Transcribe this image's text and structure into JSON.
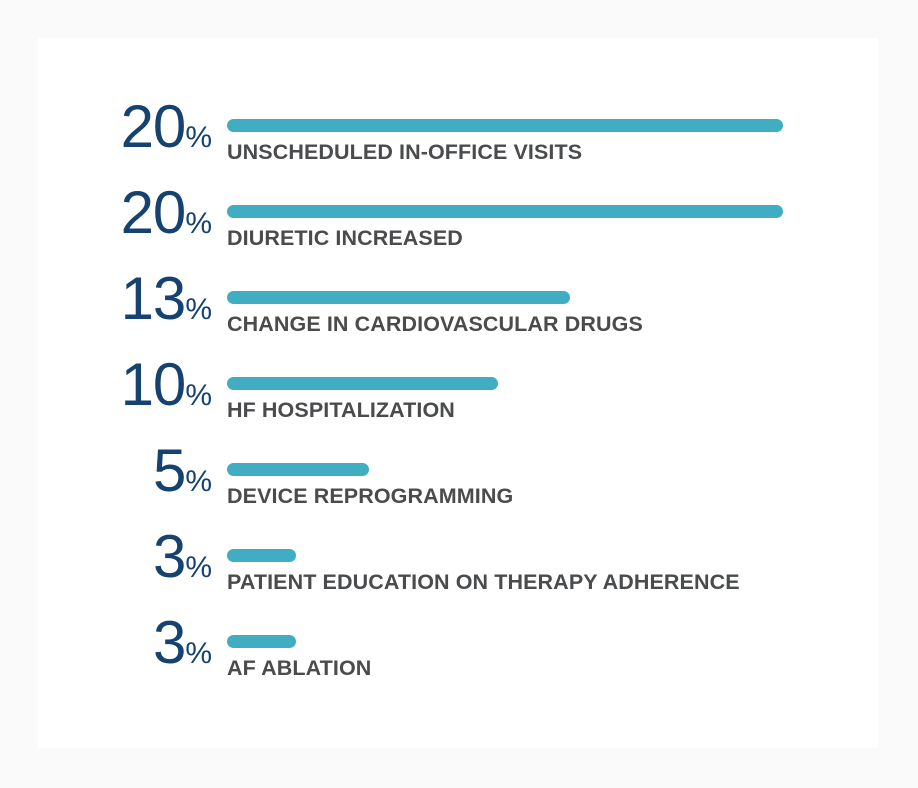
{
  "colors": {
    "background": "#fafafa",
    "card": "#ffffff",
    "value_navy": "#164270",
    "bar_teal": "#40adc3",
    "label_gray": "#4a4b4d"
  },
  "chart_data": {
    "type": "bar",
    "orientation": "horizontal",
    "unit": "%",
    "value_axis_max": 20,
    "grid": false,
    "legend": false,
    "categories": [
      "UNSCHEDULED IN-OFFICE VISITS",
      "DIURETIC INCREASED",
      "CHANGE IN CARDIOVASCULAR DRUGS",
      "HF HOSPITALIZATION",
      "DEVICE REPROGRAMMING",
      "PATIENT EDUCATION ON THERAPY ADHERENCE",
      "AF ABLATION"
    ],
    "values": [
      20,
      20,
      13,
      10,
      5,
      3,
      3
    ],
    "rows": [
      {
        "value": "20",
        "unit": "%",
        "label": "UNSCHEDULED IN-OFFICE VISITS",
        "bar_width_px": "556px"
      },
      {
        "value": "20",
        "unit": "%",
        "label": "DIURETIC INCREASED",
        "bar_width_px": "556px"
      },
      {
        "value": "13",
        "unit": "%",
        "label": "CHANGE IN CARDIOVASCULAR DRUGS",
        "bar_width_px": "343px"
      },
      {
        "value": "10",
        "unit": "%",
        "label": "HF HOSPITALIZATION",
        "bar_width_px": "271px"
      },
      {
        "value": "5",
        "unit": "%",
        "label": "DEVICE REPROGRAMMING",
        "bar_width_px": "142px"
      },
      {
        "value": "3",
        "unit": "%",
        "label": "PATIENT EDUCATION ON THERAPY ADHERENCE",
        "bar_width_px": "69px"
      },
      {
        "value": "3",
        "unit": "%",
        "label": "AF ABLATION",
        "bar_width_px": "69px"
      }
    ]
  }
}
